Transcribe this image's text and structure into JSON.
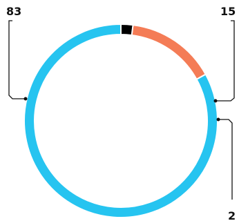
{
  "chart_data": {
    "type": "pie",
    "variant": "donut",
    "start_angle_deg": 90,
    "direction": "counterclockwise",
    "slices": [
      {
        "value": 83,
        "label": "83",
        "color": "#26C4F0"
      },
      {
        "value": 15,
        "label": "15",
        "color": "#F47C56"
      },
      {
        "value": 2,
        "label": "2",
        "color": "#000000"
      }
    ],
    "separator_color": "#ffffff"
  }
}
